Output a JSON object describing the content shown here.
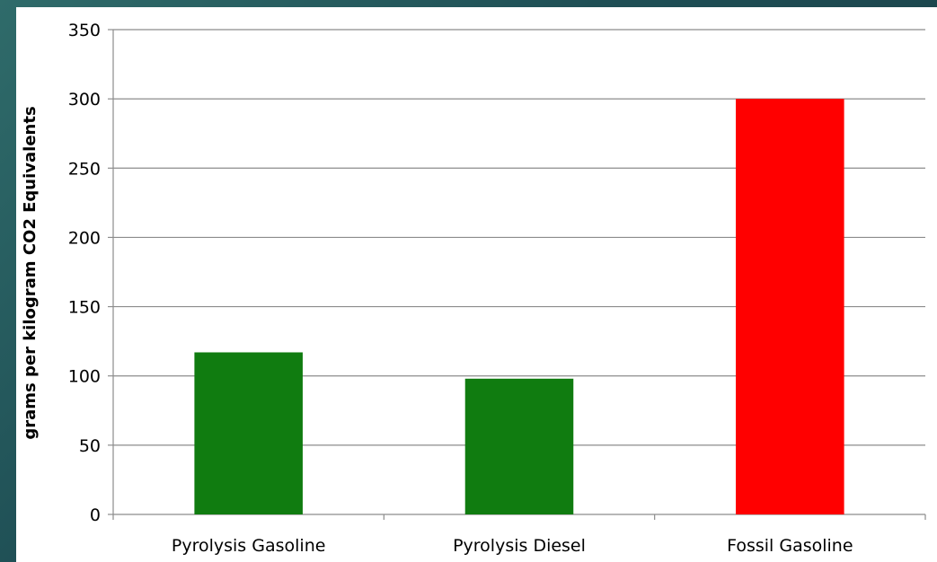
{
  "chart_data": {
    "type": "bar",
    "title": "",
    "xlabel": "",
    "ylabel": "grams per kilogram CO2 Equivalents",
    "categories": [
      "Pyrolysis Gasoline",
      "Pyrolysis Diesel",
      "Fossil Gasoline"
    ],
    "values": [
      117,
      98,
      300
    ],
    "colors": [
      "#107c10",
      "#107c10",
      "#ff0000"
    ],
    "ylim": [
      0,
      350
    ],
    "yticks": [
      0,
      50,
      100,
      150,
      200,
      250,
      300,
      350
    ],
    "grid": true,
    "legend": "none"
  }
}
